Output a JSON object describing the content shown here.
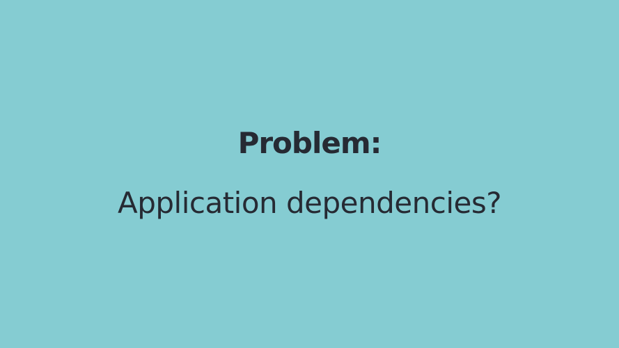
{
  "slide": {
    "title": "Problem:",
    "subtitle": "Application dependencies?",
    "background_color": "#85ccd2",
    "text_color": "#262a33"
  }
}
